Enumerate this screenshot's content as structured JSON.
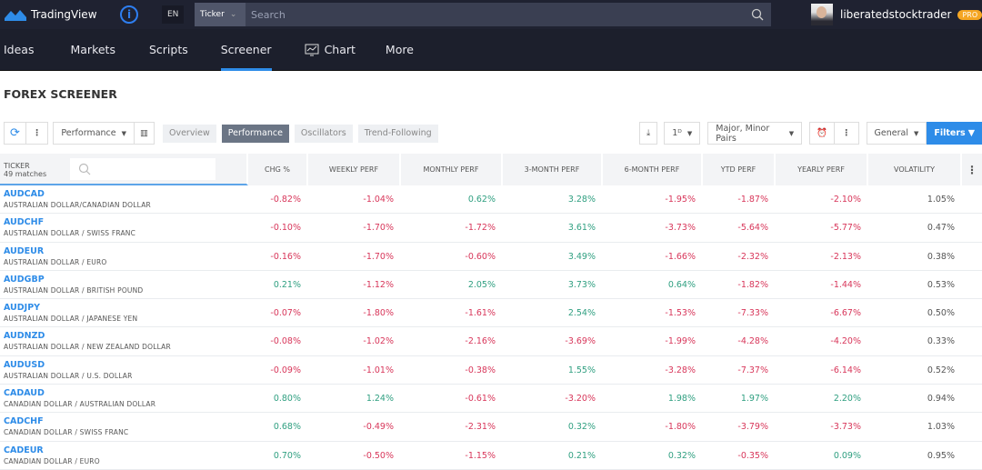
{
  "topbar": {
    "brand": "TradingView",
    "lang": "EN",
    "search_type": "Ticker",
    "search_placeholder": "Search",
    "username": "liberatedstocktrader",
    "badge": "PRO"
  },
  "nav": [
    {
      "label": "Ideas"
    },
    {
      "label": "Markets"
    },
    {
      "label": "Scripts"
    },
    {
      "label": "Screener",
      "active": true
    },
    {
      "label": "Chart"
    },
    {
      "label": "More"
    }
  ],
  "page_title": "FOREX SCREENER",
  "toolbar": {
    "column_set": "Performance",
    "tabs": [
      "Overview",
      "Performance",
      "Oscillators",
      "Trend-Following"
    ],
    "active_tab": "Performance",
    "interval": "1ᴰ",
    "pairs": "Major, Minor Pairs",
    "general": "General",
    "filters": "Filters"
  },
  "colors": {
    "positive": "#2f9f80",
    "negative": "#d8365a",
    "accent": "#2e8ce8"
  },
  "table": {
    "ticker_header": "TICKER",
    "matches": "49 matches",
    "columns": [
      "CHG %",
      "WEEKLY PERF",
      "MONTHLY PERF",
      "3-MONTH PERF",
      "6-MONTH PERF",
      "YTD PERF",
      "YEARLY PERF",
      "VOLATILITY"
    ],
    "rows": [
      {
        "ticker": "AUDCAD",
        "name": "AUSTRALIAN DOLLAR/CANADIAN DOLLAR",
        "values": [
          "-0.82%",
          "-1.04%",
          "0.62%",
          "3.28%",
          "-1.95%",
          "-1.87%",
          "-2.10%",
          "1.05%"
        ]
      },
      {
        "ticker": "AUDCHF",
        "name": "AUSTRALIAN DOLLAR / SWISS FRANC",
        "values": [
          "-0.10%",
          "-1.70%",
          "-1.72%",
          "3.61%",
          "-3.73%",
          "-5.64%",
          "-5.77%",
          "0.47%"
        ]
      },
      {
        "ticker": "AUDEUR",
        "name": "AUSTRALIAN DOLLAR / EURO",
        "values": [
          "-0.16%",
          "-1.70%",
          "-0.60%",
          "3.49%",
          "-1.66%",
          "-2.32%",
          "-2.13%",
          "0.38%"
        ]
      },
      {
        "ticker": "AUDGBP",
        "name": "AUSTRALIAN DOLLAR / BRITISH POUND",
        "values": [
          "0.21%",
          "-1.12%",
          "2.05%",
          "3.73%",
          "0.64%",
          "-1.82%",
          "-1.44%",
          "0.53%"
        ]
      },
      {
        "ticker": "AUDJPY",
        "name": "AUSTRALIAN DOLLAR / JAPANESE YEN",
        "values": [
          "-0.07%",
          "-1.80%",
          "-1.61%",
          "2.54%",
          "-1.53%",
          "-7.33%",
          "-6.67%",
          "0.50%"
        ]
      },
      {
        "ticker": "AUDNZD",
        "name": "AUSTRALIAN DOLLAR / NEW ZEALAND DOLLAR",
        "values": [
          "-0.08%",
          "-1.02%",
          "-2.16%",
          "-3.69%",
          "-1.99%",
          "-4.28%",
          "-4.20%",
          "0.33%"
        ]
      },
      {
        "ticker": "AUDUSD",
        "name": "AUSTRALIAN DOLLAR / U.S. DOLLAR",
        "values": [
          "-0.09%",
          "-1.01%",
          "-0.38%",
          "1.55%",
          "-3.28%",
          "-7.37%",
          "-6.14%",
          "0.52%"
        ]
      },
      {
        "ticker": "CADAUD",
        "name": "CANADIAN DOLLAR / AUSTRALIAN DOLLAR",
        "values": [
          "0.80%",
          "1.24%",
          "-0.61%",
          "-3.20%",
          "1.98%",
          "1.97%",
          "2.20%",
          "0.94%"
        ]
      },
      {
        "ticker": "CADCHF",
        "name": "CANADIAN DOLLAR / SWISS FRANC",
        "values": [
          "0.68%",
          "-0.49%",
          "-2.31%",
          "0.32%",
          "-1.80%",
          "-3.79%",
          "-3.73%",
          "1.03%"
        ]
      },
      {
        "ticker": "CADEUR",
        "name": "CANADIAN DOLLAR / EURO",
        "values": [
          "0.70%",
          "-0.50%",
          "-1.15%",
          "0.21%",
          "0.32%",
          "-0.35%",
          "0.09%",
          "0.95%"
        ]
      }
    ]
  }
}
